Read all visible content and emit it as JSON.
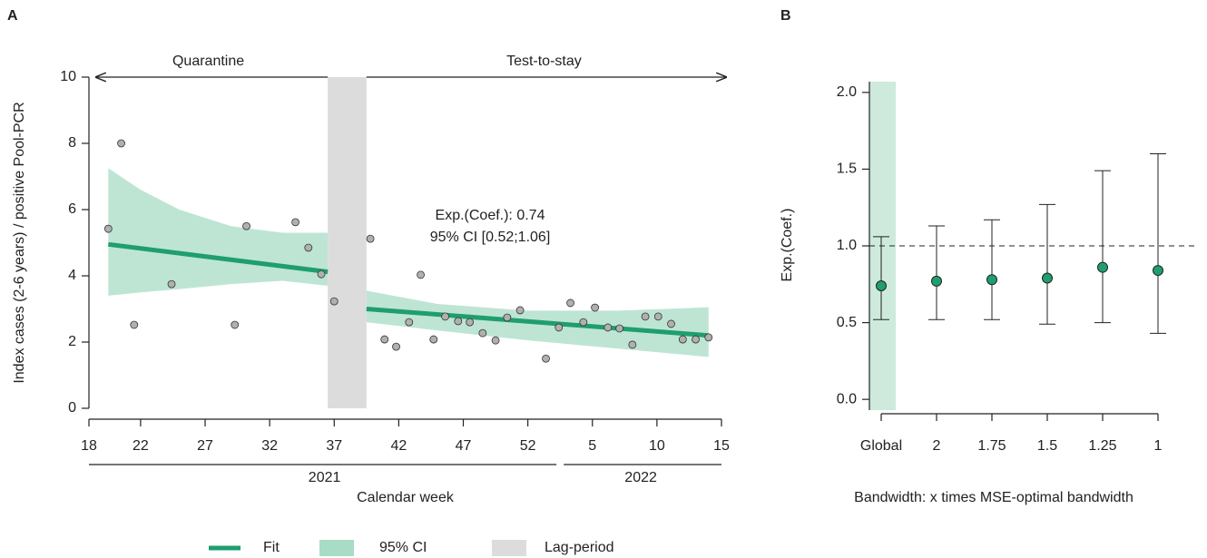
{
  "chart_data": [
    {
      "type": "scatter",
      "panel_label": "A",
      "xlabel": "Calendar week",
      "ylabel": "Index cases (2-6 years) / positive Pool-PCR",
      "x": [
        19.5,
        20.5,
        21.5,
        24.4,
        29.3,
        30.2,
        34.0,
        35.0,
        36.0,
        37.0,
        39.8,
        40.9,
        41.8,
        42.8,
        43.7,
        44.7,
        45.6,
        46.6,
        47.5,
        48.5,
        49.5,
        50.4,
        51.4,
        53.4,
        54.4,
        55.3,
        56.3,
        57.2,
        58.2,
        59.1,
        60.1,
        61.1,
        62.1,
        63.1,
        64.0,
        65.0,
        66.0
      ],
      "values": [
        5.42,
        8.0,
        2.52,
        3.75,
        2.52,
        5.5,
        5.62,
        4.85,
        4.05,
        3.23,
        5.12,
        2.08,
        1.86,
        2.6,
        4.03,
        2.08,
        2.77,
        2.63,
        2.6,
        2.27,
        2.05,
        2.74,
        2.96,
        1.5,
        2.44,
        3.18,
        2.6,
        3.04,
        2.44,
        2.41,
        1.92,
        2.77,
        2.77,
        2.55,
        2.08,
        2.08,
        2.14
      ],
      "color": "#b0b0b0",
      "xlim": [
        18,
        67
      ],
      "ylim": [
        0,
        10
      ],
      "xticks": [
        18,
        22,
        27,
        32,
        37,
        42,
        47,
        52,
        {
          "value": 57,
          "label": "5"
        },
        {
          "value": 62,
          "label": "10"
        },
        {
          "value": 67,
          "label": "15"
        }
      ],
      "yticks": [
        0,
        2,
        4,
        6,
        8,
        10
      ],
      "years": [
        "2021",
        "2022"
      ],
      "fit": {
        "name": "Fit",
        "color": "#1f9e6e",
        "segments": [
          {
            "x": [
              19.5,
              36.5
            ],
            "y": [
              4.95,
              4.12
            ]
          },
          {
            "x": [
              39.5,
              66.0
            ],
            "y": [
              3.0,
              2.2
            ]
          }
        ]
      },
      "ci": {
        "name": "95% CI",
        "color": "#a8dcc6",
        "segments": [
          {
            "x": [
              19.5,
              22,
              25,
              29,
              33,
              36.5
            ],
            "upper": [
              7.25,
              6.6,
              6.0,
              5.5,
              5.3,
              5.3
            ],
            "lower": [
              3.4,
              3.5,
              3.6,
              3.75,
              3.85,
              3.7
            ]
          },
          {
            "x": [
              39.5,
              45,
              52,
              59,
              66
            ],
            "upper": [
              3.55,
              3.15,
              2.95,
              2.95,
              3.05
            ],
            "lower": [
              2.6,
              2.35,
              2.05,
              1.8,
              1.55
            ]
          }
        ]
      },
      "lag": {
        "name": "Lag-period",
        "color": "#dcdcdc",
        "x": [
          36.5,
          39.5
        ]
      },
      "phases": [
        "Quarantine",
        "Test-to-stay"
      ],
      "annotation": [
        "Exp.(Coef.): 0.74",
        "95% CI [0.52;1.06]"
      ]
    },
    {
      "type": "errorbar",
      "panel_label": "B",
      "xlabel": "Bandwidth: x times MSE-optimal bandwidth",
      "ylabel": "Exp.(Coef.)",
      "categories": [
        "Global",
        "2",
        "1.75",
        "1.5",
        "1.25",
        "1"
      ],
      "values": [
        0.74,
        0.77,
        0.78,
        0.79,
        0.86,
        0.84
      ],
      "lower": [
        0.52,
        0.52,
        0.52,
        0.49,
        0.5,
        0.43
      ],
      "upper": [
        1.06,
        1.13,
        1.17,
        1.27,
        1.49,
        1.6
      ],
      "color": "#1f9e6e",
      "ylim": [
        -0.07,
        2.07
      ],
      "yticks": [
        {
          "value": 0,
          "label": "0.0"
        },
        0.5,
        {
          "value": 1,
          "label": "1.0"
        },
        1.5,
        {
          "value": 2,
          "label": "2.0"
        }
      ],
      "reference_line": 1,
      "highlight_category": 0,
      "highlight_color": "#cdeadd"
    }
  ]
}
